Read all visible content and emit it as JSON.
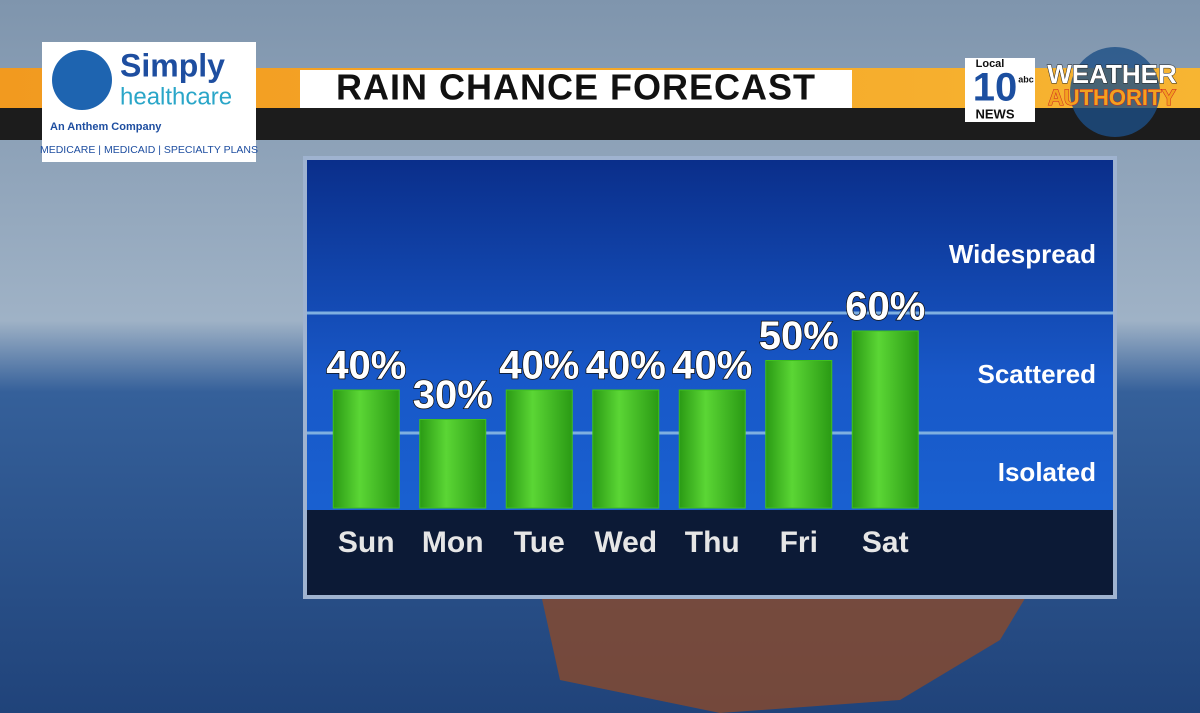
{
  "chart_data": {
    "type": "bar",
    "title": "RAIN CHANCE FORECAST",
    "categories": [
      "Sun",
      "Mon",
      "Tue",
      "Wed",
      "Thu",
      "Fri",
      "Sat"
    ],
    "values": [
      40,
      30,
      40,
      40,
      40,
      50,
      60
    ],
    "value_labels": [
      "40%",
      "30%",
      "40%",
      "40%",
      "40%",
      "50%",
      "60%"
    ],
    "color": "#3fbf1f",
    "ylim": [
      0,
      100
    ],
    "annotations": [
      "Widespread",
      "Scattered",
      "Isolated"
    ]
  },
  "branding": {
    "sponsor": "Simply",
    "sponsor_line2": "healthcare",
    "sponsor_tagline": "An Anthem Company",
    "sponsor_plans": "MEDICARE | MEDICAID | SPECIALTY PLANS",
    "station_top": "Local",
    "station_number": "10",
    "station_network": "abc",
    "station_bottom": "NEWS",
    "weather_1": "WEATHER",
    "weather_2": "AUTHORITY"
  }
}
